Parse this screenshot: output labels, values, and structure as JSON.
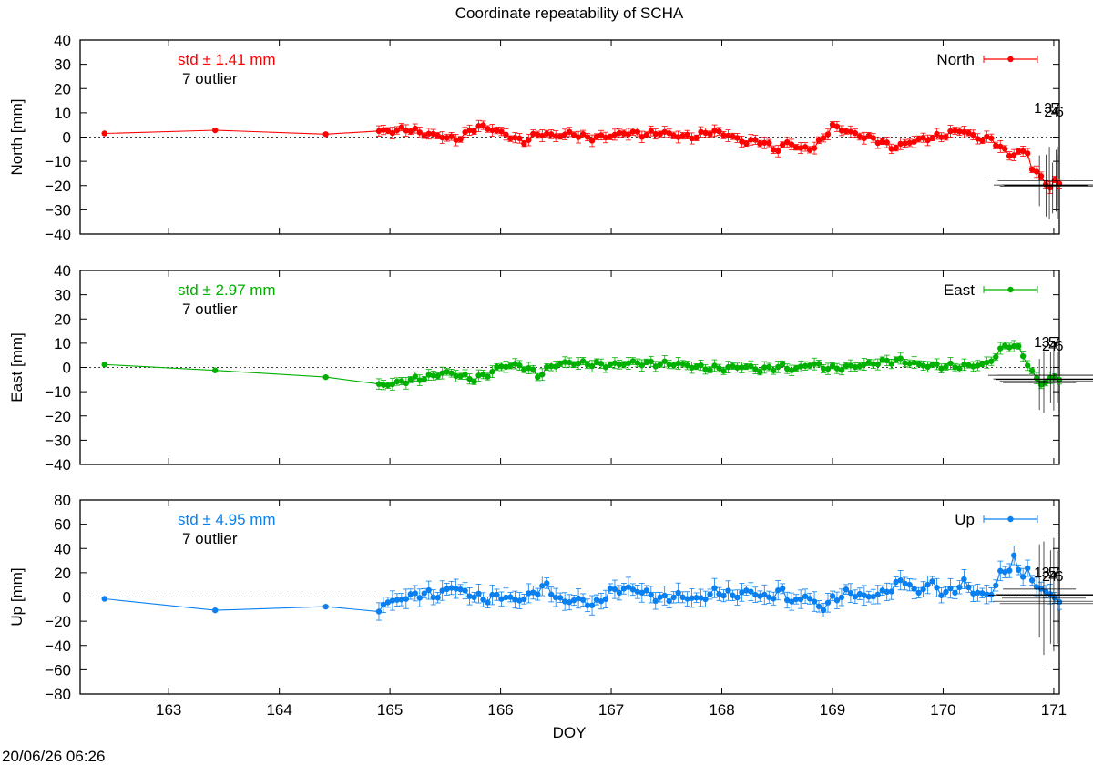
{
  "title": "Coordinate repeatability of SCHA",
  "xlabel": "DOY",
  "timestamp": "20/06/26 06:26",
  "colors": {
    "north": "#ff0000",
    "east": "#00b000",
    "up": "#0a80f0",
    "axis": "#000000",
    "outlier": "#000000"
  },
  "chart_data": [
    {
      "type": "scatter",
      "series_name": "North",
      "ylabel": "North [mm]",
      "ylim": [
        -40,
        40
      ],
      "yticks": [
        "40",
        "30",
        "20",
        "10",
        "0",
        "−10",
        "−20",
        "−30",
        "−40"
      ],
      "xlim": [
        162.2,
        171.05
      ],
      "xticks": [
        "163",
        "164",
        "165",
        "166",
        "167",
        "168",
        "169",
        "170",
        "171"
      ],
      "std_label": "std ± 1.41 mm",
      "outlier_label": "7 outlier",
      "outlier_tags": [
        "1",
        "2",
        "3",
        "4",
        "5",
        "6",
        "7"
      ],
      "early_points": [
        [
          162.42,
          1.5
        ],
        [
          163.42,
          2.8
        ],
        [
          164.42,
          1.2
        ]
      ],
      "control": [
        [
          164.9,
          2.5
        ],
        [
          165.05,
          2.5
        ],
        [
          165.15,
          3.5
        ],
        [
          165.3,
          1.5
        ],
        [
          165.45,
          0.5
        ],
        [
          165.6,
          -1.0
        ],
        [
          165.8,
          4.5
        ],
        [
          165.95,
          3.0
        ],
        [
          166.05,
          1.0
        ],
        [
          166.2,
          -2.0
        ],
        [
          166.35,
          1.5
        ],
        [
          166.5,
          0.5
        ],
        [
          166.65,
          1.5
        ],
        [
          166.8,
          -0.5
        ],
        [
          167.0,
          0.5
        ],
        [
          167.15,
          2.0
        ],
        [
          167.3,
          1.0
        ],
        [
          167.45,
          2.0
        ],
        [
          167.6,
          0.5
        ],
        [
          167.75,
          0.0
        ],
        [
          167.9,
          2.5
        ],
        [
          168.05,
          1.0
        ],
        [
          168.2,
          -2.0
        ],
        [
          168.35,
          -1.5
        ],
        [
          168.5,
          -5.5
        ],
        [
          168.6,
          -2.0
        ],
        [
          168.72,
          -5.0
        ],
        [
          168.85,
          -4.0
        ],
        [
          169.0,
          4.5
        ],
        [
          169.1,
          3.0
        ],
        [
          169.25,
          0.5
        ],
        [
          169.4,
          -1.0
        ],
        [
          169.55,
          -4.5
        ],
        [
          169.7,
          -2.0
        ],
        [
          169.85,
          -0.5
        ],
        [
          170.0,
          0.5
        ],
        [
          170.15,
          3.0
        ],
        [
          170.25,
          1.0
        ],
        [
          170.35,
          -1.0
        ],
        [
          170.45,
          -0.5
        ],
        [
          170.5,
          -4.0
        ],
        [
          170.62,
          -7.5
        ],
        [
          170.72,
          -6.0
        ],
        [
          170.75,
          -4.0
        ],
        [
          170.8,
          -13.0
        ],
        [
          170.9,
          -17.0
        ],
        [
          170.97,
          -21.0
        ],
        [
          171.02,
          -18.0
        ],
        [
          171.05,
          -18.5
        ]
      ],
      "outlier_points": [
        [
          170.87,
          -18
        ],
        [
          170.93,
          -20
        ],
        [
          170.96,
          -19
        ],
        [
          170.99,
          -21
        ],
        [
          171.02,
          -18
        ],
        [
          171.05,
          -19
        ],
        [
          171.07,
          -18
        ]
      ]
    },
    {
      "type": "scatter",
      "series_name": "East",
      "ylabel": "East [mm]",
      "ylim": [
        -40,
        40
      ],
      "yticks": [
        "40",
        "30",
        "20",
        "10",
        "0",
        "−10",
        "−20",
        "−30",
        "−40"
      ],
      "xlim": [
        162.2,
        171.05
      ],
      "xticks": [
        "163",
        "164",
        "165",
        "166",
        "167",
        "168",
        "169",
        "170",
        "171"
      ],
      "std_label": "std ± 2.97 mm",
      "outlier_label": "7 outlier",
      "outlier_tags": [
        "1",
        "2",
        "3",
        "4",
        "5",
        "6",
        "7"
      ],
      "early_points": [
        [
          162.42,
          1.2
        ],
        [
          163.42,
          -1.2
        ],
        [
          164.42,
          -4.0
        ]
      ],
      "control": [
        [
          164.9,
          -7.5
        ],
        [
          165.05,
          -6.5
        ],
        [
          165.2,
          -5.0
        ],
        [
          165.35,
          -4.0
        ],
        [
          165.5,
          -2.0
        ],
        [
          165.65,
          -3.5
        ],
        [
          165.75,
          -5.0
        ],
        [
          165.9,
          -2.5
        ],
        [
          166.0,
          0.5
        ],
        [
          166.15,
          1.0
        ],
        [
          166.25,
          -0.5
        ],
        [
          166.35,
          -3.5
        ],
        [
          166.45,
          0.5
        ],
        [
          166.6,
          2.0
        ],
        [
          166.8,
          1.5
        ],
        [
          167.0,
          1.0
        ],
        [
          167.2,
          2.0
        ],
        [
          167.4,
          1.5
        ],
        [
          167.6,
          1.5
        ],
        [
          167.8,
          0.0
        ],
        [
          168.0,
          -0.5
        ],
        [
          168.2,
          0.5
        ],
        [
          168.35,
          -1.0
        ],
        [
          168.55,
          0.5
        ],
        [
          168.65,
          -1.0
        ],
        [
          168.8,
          1.5
        ],
        [
          169.0,
          -0.5
        ],
        [
          169.2,
          0.5
        ],
        [
          169.4,
          2.0
        ],
        [
          169.6,
          3.0
        ],
        [
          169.8,
          1.0
        ],
        [
          170.0,
          0.5
        ],
        [
          170.2,
          0.5
        ],
        [
          170.3,
          1.0
        ],
        [
          170.4,
          1.5
        ],
        [
          170.5,
          6.0
        ],
        [
          170.58,
          10.0
        ],
        [
          170.65,
          8.0
        ],
        [
          170.7,
          8.0
        ],
        [
          170.75,
          2.0
        ],
        [
          170.82,
          -3.0
        ],
        [
          170.88,
          -7.0
        ],
        [
          170.95,
          -5.0
        ],
        [
          171.05,
          -4.0
        ]
      ],
      "outlier_points": [
        [
          170.87,
          -7
        ],
        [
          170.91,
          -6
        ],
        [
          170.94,
          -5
        ],
        [
          170.97,
          -4
        ],
        [
          171.0,
          -5
        ],
        [
          171.03,
          -4
        ],
        [
          171.06,
          -4
        ]
      ]
    },
    {
      "type": "scatter",
      "series_name": "Up",
      "ylabel": "Up [mm]",
      "ylim": [
        -80,
        80
      ],
      "yticks": [
        "80",
        "60",
        "40",
        "20",
        "0",
        "−20",
        "−40",
        "−60",
        "−80"
      ],
      "xlim": [
        162.2,
        171.05
      ],
      "xticks": [
        "163",
        "164",
        "165",
        "166",
        "167",
        "168",
        "169",
        "170",
        "171"
      ],
      "std_label": "std ± 4.95 mm",
      "outlier_label": "7 outlier",
      "outlier_tags": [
        "1",
        "2",
        "3",
        "4",
        "5",
        "6",
        "7"
      ],
      "early_points": [
        [
          162.42,
          -1.5
        ],
        [
          163.42,
          -11.0
        ],
        [
          164.42,
          -8.0
        ]
      ],
      "control": [
        [
          164.9,
          -14.0
        ],
        [
          164.95,
          -2.0
        ],
        [
          165.0,
          -5.0
        ],
        [
          165.15,
          0.0
        ],
        [
          165.3,
          3.0
        ],
        [
          165.45,
          1.0
        ],
        [
          165.55,
          9.0
        ],
        [
          165.7,
          3.0
        ],
        [
          165.85,
          -2.0
        ],
        [
          166.0,
          1.0
        ],
        [
          166.15,
          -3.0
        ],
        [
          166.3,
          3.0
        ],
        [
          166.4,
          10.0
        ],
        [
          166.55,
          -4.0
        ],
        [
          166.7,
          -2.0
        ],
        [
          166.85,
          -7.0
        ],
        [
          167.0,
          5.0
        ],
        [
          167.15,
          7.0
        ],
        [
          167.3,
          4.0
        ],
        [
          167.45,
          -2.0
        ],
        [
          167.6,
          1.0
        ],
        [
          167.8,
          -2.0
        ],
        [
          167.95,
          5.0
        ],
        [
          168.1,
          1.0
        ],
        [
          168.25,
          5.0
        ],
        [
          168.4,
          -1.0
        ],
        [
          168.55,
          5.0
        ],
        [
          168.65,
          -6.0
        ],
        [
          168.75,
          2.0
        ],
        [
          168.9,
          -10.0
        ],
        [
          169.0,
          -2.0
        ],
        [
          169.15,
          4.0
        ],
        [
          169.3,
          0.0
        ],
        [
          169.45,
          3.0
        ],
        [
          169.55,
          8.0
        ],
        [
          169.65,
          15.0
        ],
        [
          169.75,
          3.0
        ],
        [
          169.9,
          12.0
        ],
        [
          170.0,
          2.0
        ],
        [
          170.1,
          6.0
        ],
        [
          170.2,
          12.0
        ],
        [
          170.3,
          2.0
        ],
        [
          170.45,
          3.0
        ],
        [
          170.52,
          20.0
        ],
        [
          170.6,
          24.0
        ],
        [
          170.65,
          33.0
        ],
        [
          170.7,
          15.0
        ],
        [
          170.75,
          26.0
        ],
        [
          170.8,
          12.0
        ],
        [
          170.88,
          8.0
        ],
        [
          170.95,
          2.0
        ],
        [
          171.05,
          -2.0
        ]
      ],
      "outlier_points": [
        [
          170.87,
          5
        ],
        [
          170.91,
          -1
        ],
        [
          170.94,
          -4
        ],
        [
          170.97,
          0
        ],
        [
          171.0,
          2
        ],
        [
          171.03,
          -2
        ],
        [
          171.06,
          0
        ]
      ]
    }
  ]
}
